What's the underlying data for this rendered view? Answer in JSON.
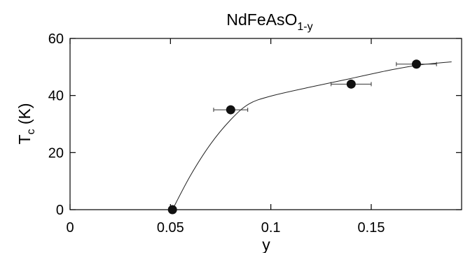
{
  "chart_data": {
    "type": "scatter",
    "title": "NdFeAsO",
    "title_subscript": "1-y",
    "xlabel": "y",
    "ylabel_main": "T",
    "ylabel_subscript": "c",
    "ylabel_unit": " (K)",
    "xlim": [
      0,
      0.195
    ],
    "ylim": [
      0,
      60
    ],
    "xticks": [
      0,
      0.05,
      0.1,
      0.15
    ],
    "xtick_labels": [
      "0",
      "0.05",
      "0.1",
      "0.15"
    ],
    "yticks": [
      0,
      20,
      40,
      60
    ],
    "ytick_labels": [
      "0",
      "20",
      "40",
      "60"
    ],
    "grid": false,
    "series": [
      {
        "x": [
          0.051,
          0.08,
          0.14,
          0.1725
        ],
        "y": [
          0,
          35,
          44,
          51
        ],
        "xerr": [
          0.0,
          0.0085,
          0.01,
          0.01
        ]
      }
    ],
    "guide_curve": {
      "x": [
        0.051,
        0.06,
        0.07,
        0.08,
        0.089,
        0.1,
        0.12,
        0.14,
        0.16,
        0.175,
        0.19
      ],
      "y": [
        0,
        12,
        23,
        31.5,
        37,
        39.8,
        43,
        46,
        49,
        50.8,
        51.8
      ]
    },
    "colors": {
      "axis": "#000000",
      "marker": "#111111",
      "curve": "#222222"
    }
  }
}
